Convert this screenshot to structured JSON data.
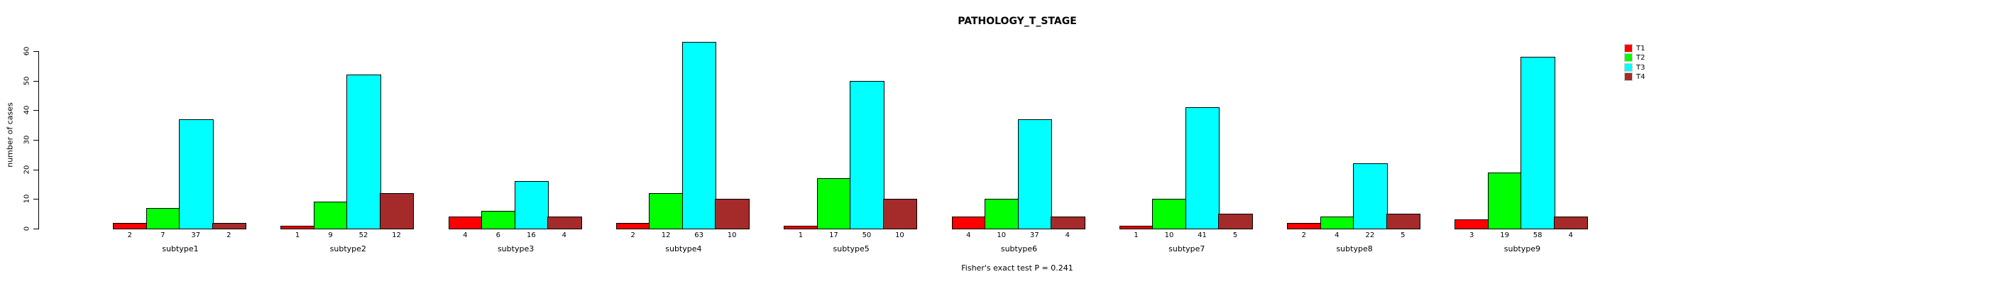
{
  "chart_data": {
    "type": "bar",
    "title": "PATHOLOGY_T_STAGE",
    "ylabel": "number of cases",
    "xlabel": "",
    "footer": "Fisher's exact test P = 0.241",
    "ylim": [
      0,
      60
    ],
    "yticks": [
      0,
      10,
      20,
      30,
      40,
      50,
      60
    ],
    "grid": false,
    "legend_position": "top-right",
    "bar_value_labels": true,
    "categories": [
      "subtype1",
      "subtype2",
      "subtype3",
      "subtype4",
      "subtype5",
      "subtype6",
      "subtype7",
      "subtype8",
      "subtype9"
    ],
    "series": [
      {
        "name": "T1",
        "color": "#FF0000",
        "values": [
          2,
          1,
          4,
          2,
          1,
          4,
          1,
          2,
          3
        ]
      },
      {
        "name": "T2",
        "color": "#00FF00",
        "values": [
          7,
          9,
          6,
          12,
          17,
          10,
          10,
          4,
          19
        ]
      },
      {
        "name": "T3",
        "color": "#00FFFF",
        "values": [
          37,
          52,
          16,
          63,
          50,
          37,
          41,
          22,
          58
        ]
      },
      {
        "name": "T4",
        "color": "#A52A2A",
        "values": [
          2,
          12,
          4,
          10,
          10,
          4,
          5,
          5,
          4
        ]
      }
    ]
  },
  "colors": {
    "background": "#ffffff",
    "axis": "#000000",
    "text": "#000000",
    "bar_border": "#000000",
    "legend_swatch_border": "#cccccc"
  }
}
